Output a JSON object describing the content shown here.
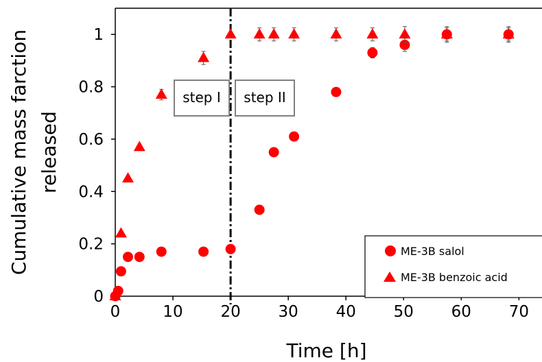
{
  "chart_data": {
    "type": "scatter",
    "title": "",
    "xlabel": "Time [h]",
    "ylabel_lines": [
      "Cumulative mass farction",
      "released"
    ],
    "xlim": [
      0,
      74
    ],
    "ylim": [
      0,
      1.1
    ],
    "xticks": [
      0,
      10,
      20,
      30,
      40,
      50,
      60,
      70
    ],
    "yticks": [
      0,
      0.2,
      0.4,
      0.6,
      0.8,
      1
    ],
    "ytick_labels": [
      "0",
      "0.2",
      "0.4",
      "0.6",
      "0.8",
      "1"
    ],
    "grid": false,
    "legend_position": "bottom-right",
    "vertical_line_x": 20,
    "step_labels": [
      "step I",
      "step II"
    ],
    "color": "#ff0000",
    "series": [
      {
        "name": "ME-3B salol",
        "marker": "circle",
        "x": [
          0,
          0.5,
          1,
          2.2,
          4.2,
          8,
          15.3,
          20,
          25,
          27.5,
          31,
          38.3,
          44.6,
          50.2,
          57.5,
          68.2
        ],
        "y": [
          0,
          0.02,
          0.095,
          0.15,
          0.15,
          0.17,
          0.17,
          0.18,
          0.33,
          0.55,
          0.61,
          0.78,
          0.93,
          0.96,
          1.0,
          1.0
        ],
        "err": [
          0,
          0,
          0,
          0,
          0,
          0,
          0,
          0,
          0,
          0,
          0,
          0.015,
          0.02,
          0.025,
          0.025,
          0.025
        ]
      },
      {
        "name": "ME-3B benzoic acid",
        "marker": "triangle",
        "x": [
          0,
          1,
          2.2,
          4.2,
          8,
          15.3,
          20,
          25,
          27.5,
          31,
          38.3,
          44.6,
          50.2,
          57.5,
          68.2
        ],
        "y": [
          0,
          0.24,
          0.45,
          0.57,
          0.77,
          0.91,
          1.0,
          1.0,
          1.0,
          1.0,
          1.0,
          1.0,
          1.0,
          1.0,
          1.0
        ],
        "err": [
          0,
          0,
          0,
          0,
          0.02,
          0.025,
          0,
          0.025,
          0.025,
          0.025,
          0.025,
          0.025,
          0.03,
          0.03,
          0.03
        ]
      }
    ]
  }
}
